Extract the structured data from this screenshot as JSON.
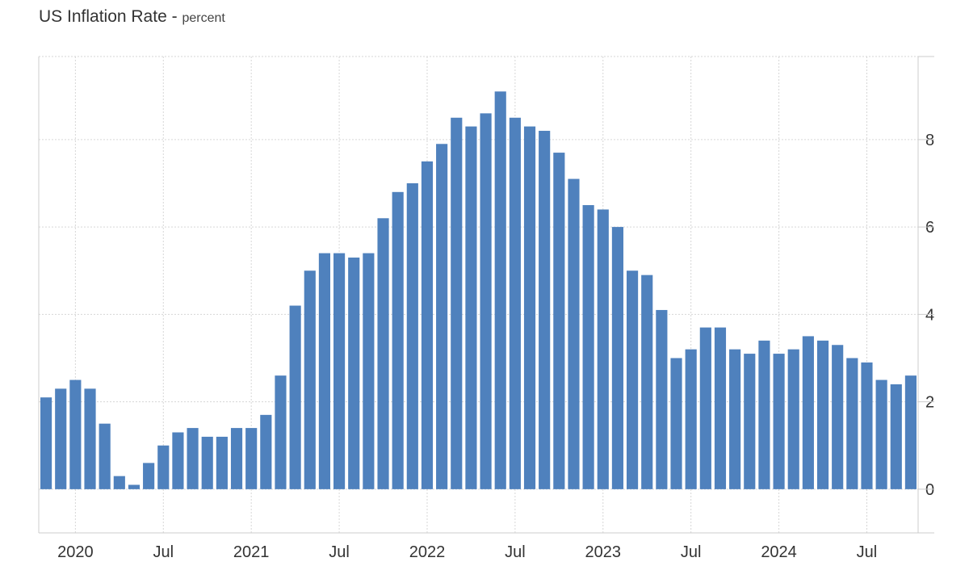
{
  "chart_data": {
    "type": "bar",
    "title": "US Inflation Rate",
    "unit": "percent",
    "xlabel": "",
    "ylabel": "",
    "ylim": [
      -1,
      9.9
    ],
    "yticks": [
      "0",
      "2",
      "4",
      "6",
      "8"
    ],
    "xticks": [
      {
        "label": "2020",
        "index": 2
      },
      {
        "label": "Jul",
        "index": 8
      },
      {
        "label": "2021",
        "index": 14
      },
      {
        "label": "Jul",
        "index": 20
      },
      {
        "label": "2022",
        "index": 26
      },
      {
        "label": "Jul",
        "index": 32
      },
      {
        "label": "2023",
        "index": 38
      },
      {
        "label": "Jul",
        "index": 44
      },
      {
        "label": "2024",
        "index": 50
      },
      {
        "label": "Jul",
        "index": 56
      }
    ],
    "grid": true,
    "bar_color": "#4f81bd",
    "series": [
      {
        "values": [
          2.1,
          2.3,
          2.5,
          2.3,
          1.5,
          0.3,
          0.1,
          0.6,
          1.0,
          1.3,
          1.4,
          1.2,
          1.2,
          1.4,
          1.4,
          1.7,
          2.6,
          4.2,
          5.0,
          5.4,
          5.4,
          5.3,
          5.4,
          6.2,
          6.8,
          7.0,
          7.5,
          7.9,
          8.5,
          8.3,
          8.6,
          9.1,
          8.5,
          8.3,
          8.2,
          7.7,
          7.1,
          6.5,
          6.4,
          6.0,
          5.0,
          4.9,
          4.1,
          3.0,
          3.2,
          3.7,
          3.7,
          3.2,
          3.1,
          3.4,
          3.1,
          3.2,
          3.5,
          3.4,
          3.3,
          3.0,
          2.9,
          2.5,
          2.4,
          2.6
        ]
      }
    ]
  }
}
